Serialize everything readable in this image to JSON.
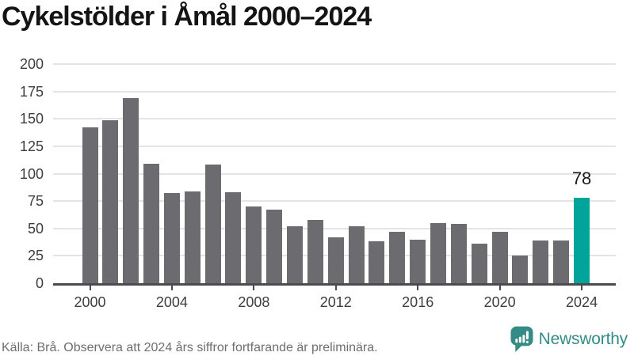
{
  "title": "Cykelstölder i Åmål 2000–2024",
  "chart_data": {
    "type": "bar",
    "title": "Cykelstölder i Åmål 2000–2024",
    "series_name": "Cykelstölder (antal)",
    "x": [
      2000,
      2001,
      2002,
      2003,
      2004,
      2005,
      2006,
      2007,
      2008,
      2009,
      2010,
      2011,
      2012,
      2013,
      2014,
      2015,
      2016,
      2017,
      2018,
      2019,
      2020,
      2021,
      2022,
      2023,
      2024
    ],
    "values": [
      142,
      149,
      169,
      109,
      82,
      84,
      108,
      83,
      70,
      67,
      52,
      58,
      42,
      52,
      38,
      47,
      40,
      55,
      54,
      36,
      47,
      25,
      39,
      39,
      78
    ],
    "highlight": {
      "x": 2024,
      "value": 78,
      "label": "78",
      "color": "#00a49b"
    },
    "bar_color": "#6c6b70",
    "ylim": [
      0,
      200
    ],
    "yticks": [
      0,
      25,
      50,
      75,
      100,
      125,
      150,
      175,
      200
    ],
    "xticks": [
      2000,
      2004,
      2008,
      2012,
      2016,
      2020,
      2024
    ],
    "grid": "horizontal",
    "grid_color": "#e4e4e4",
    "axis_color": "#4b4b4d",
    "legend": "none"
  },
  "footer": {
    "source_note": "Källa: Brå. Observera att 2024 års siffror fortfarande är preliminära.",
    "brand": {
      "name": "Newsworthy",
      "color": "#358b85",
      "icon": "newsworthy-bar-chart-bubble-icon"
    }
  }
}
